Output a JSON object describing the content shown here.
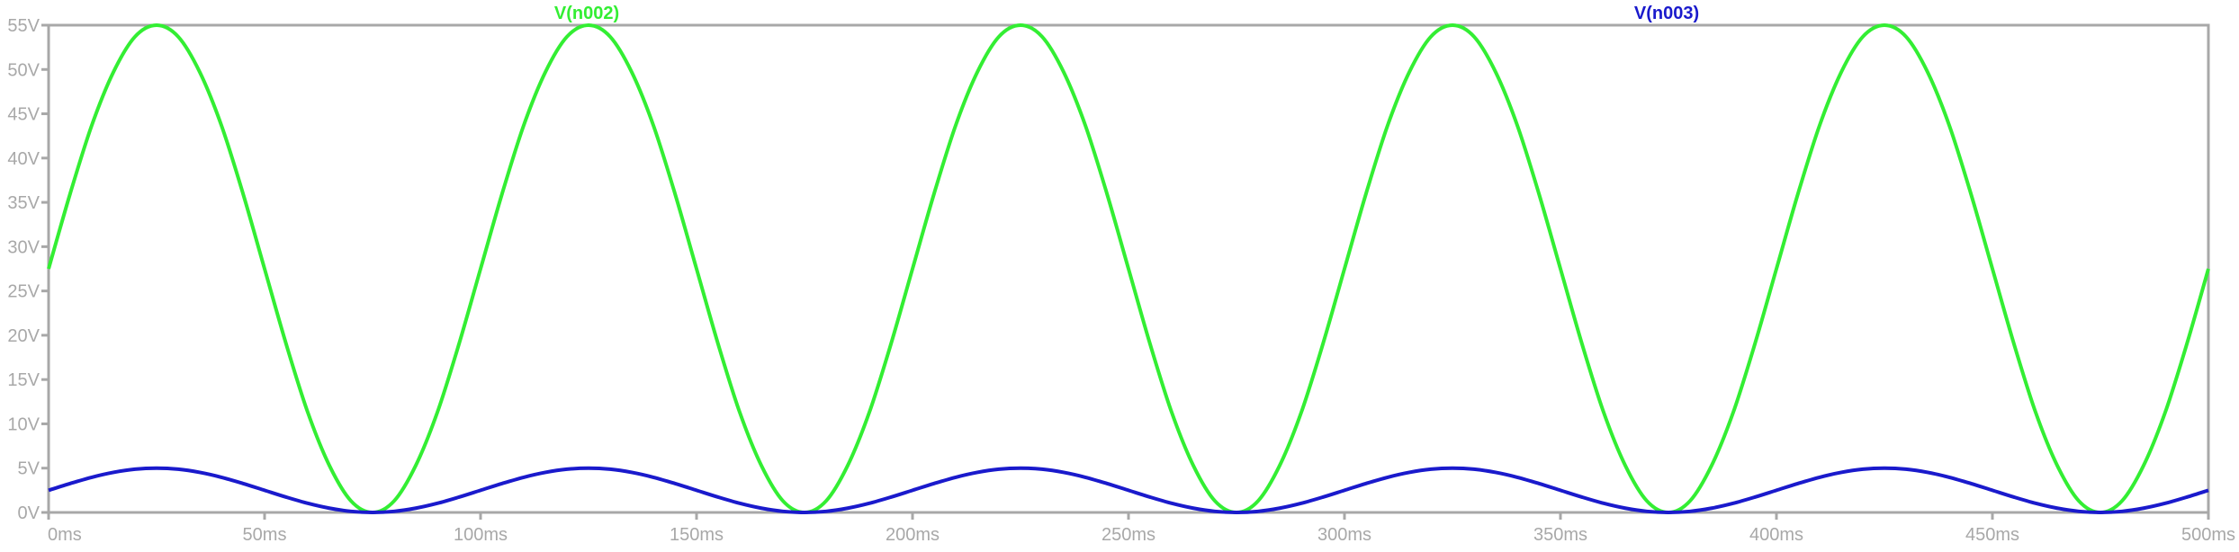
{
  "chart_data": {
    "type": "line",
    "xlim": [
      0,
      500
    ],
    "ylim": [
      0,
      55
    ],
    "x_ticks": [
      0,
      50,
      100,
      150,
      200,
      250,
      300,
      350,
      400,
      450,
      500
    ],
    "x_tick_labels": [
      "0ms",
      "50ms",
      "100ms",
      "150ms",
      "200ms",
      "250ms",
      "300ms",
      "350ms",
      "400ms",
      "450ms",
      "500ms"
    ],
    "y_ticks": [
      0,
      5,
      10,
      15,
      20,
      25,
      30,
      35,
      40,
      45,
      50,
      55
    ],
    "y_tick_labels": [
      "0V",
      "5V",
      "10V",
      "15V",
      "20V",
      "25V",
      "30V",
      "35V",
      "40V",
      "45V",
      "50V",
      "55V"
    ],
    "grid": false,
    "legend_position": "top",
    "series": [
      {
        "name": "V(n002)",
        "color": "#33ee33",
        "x": [
          0,
          5,
          10,
          15,
          20,
          25,
          30,
          35,
          40,
          45,
          50,
          55,
          60,
          65,
          70,
          75,
          80,
          85,
          90,
          95,
          100,
          105,
          110,
          115,
          120,
          125,
          130,
          135,
          140,
          145,
          150,
          155,
          160,
          165,
          170,
          175,
          180,
          185,
          190,
          195,
          200,
          205,
          210,
          215,
          220,
          225,
          230,
          235,
          240,
          245,
          250,
          255,
          260,
          265,
          270,
          275,
          280,
          285,
          290,
          295,
          300,
          305,
          310,
          315,
          320,
          325,
          330,
          335,
          340,
          345,
          350,
          355,
          360,
          365,
          370,
          375,
          380,
          385,
          390,
          395,
          400,
          405,
          410,
          415,
          420,
          425,
          430,
          435,
          440,
          445,
          450,
          455,
          460,
          465,
          470,
          475,
          480,
          485,
          490,
          495,
          500
        ],
        "y": [
          27.5,
          36.0,
          43.7,
          49.7,
          53.7,
          55.0,
          53.7,
          49.7,
          43.7,
          36.0,
          27.5,
          19.0,
          11.3,
          5.3,
          1.3,
          0.0,
          1.3,
          5.3,
          11.3,
          19.0,
          27.5,
          36.0,
          43.7,
          49.7,
          53.7,
          55.0,
          53.7,
          49.7,
          43.7,
          36.0,
          27.5,
          19.0,
          11.3,
          5.3,
          1.3,
          0.0,
          1.3,
          5.3,
          11.3,
          19.0,
          27.5,
          36.0,
          43.7,
          49.7,
          53.7,
          55.0,
          53.7,
          49.7,
          43.7,
          36.0,
          27.5,
          19.0,
          11.3,
          5.3,
          1.3,
          0.0,
          1.3,
          5.3,
          11.3,
          19.0,
          27.5,
          36.0,
          43.7,
          49.7,
          53.7,
          55.0,
          53.7,
          49.7,
          43.7,
          36.0,
          27.5,
          19.0,
          11.3,
          5.3,
          1.3,
          0.0,
          1.3,
          5.3,
          11.3,
          19.0,
          27.5,
          36.0,
          43.7,
          49.7,
          53.7,
          55.0,
          53.7,
          49.7,
          43.7,
          36.0,
          27.5,
          19.0,
          11.3,
          5.3,
          1.3,
          0.0,
          1.3,
          5.3,
          11.3,
          19.0,
          27.5
        ]
      },
      {
        "name": "V(n003)",
        "color": "#1a1acc",
        "x": [
          0,
          5,
          10,
          15,
          20,
          25,
          30,
          35,
          40,
          45,
          50,
          55,
          60,
          65,
          70,
          75,
          80,
          85,
          90,
          95,
          100,
          105,
          110,
          115,
          120,
          125,
          130,
          135,
          140,
          145,
          150,
          155,
          160,
          165,
          170,
          175,
          180,
          185,
          190,
          195,
          200,
          205,
          210,
          215,
          220,
          225,
          230,
          235,
          240,
          245,
          250,
          255,
          260,
          265,
          270,
          275,
          280,
          285,
          290,
          295,
          300,
          305,
          310,
          315,
          320,
          325,
          330,
          335,
          340,
          345,
          350,
          355,
          360,
          365,
          370,
          375,
          380,
          385,
          390,
          395,
          400,
          405,
          410,
          415,
          420,
          425,
          430,
          435,
          440,
          445,
          450,
          455,
          460,
          465,
          470,
          475,
          480,
          485,
          490,
          495,
          500
        ],
        "y": [
          2.5,
          3.27,
          3.97,
          4.52,
          4.88,
          5.0,
          4.88,
          4.52,
          3.97,
          3.27,
          2.5,
          1.73,
          1.03,
          0.48,
          0.12,
          0.0,
          0.12,
          0.48,
          1.03,
          1.73,
          2.5,
          3.27,
          3.97,
          4.52,
          4.88,
          5.0,
          4.88,
          4.52,
          3.97,
          3.27,
          2.5,
          1.73,
          1.03,
          0.48,
          0.12,
          0.0,
          0.12,
          0.48,
          1.03,
          1.73,
          2.5,
          3.27,
          3.97,
          4.52,
          4.88,
          5.0,
          4.88,
          4.52,
          3.97,
          3.27,
          2.5,
          1.73,
          1.03,
          0.48,
          0.12,
          0.0,
          0.12,
          0.48,
          1.03,
          1.73,
          2.5,
          3.27,
          3.97,
          4.52,
          4.88,
          5.0,
          4.88,
          4.52,
          3.97,
          3.27,
          2.5,
          1.73,
          1.03,
          0.48,
          0.12,
          0.0,
          0.12,
          0.48,
          1.03,
          1.73,
          2.5,
          3.27,
          3.97,
          4.52,
          4.88,
          5.0,
          4.88,
          4.52,
          3.97,
          3.27,
          2.5,
          1.73,
          1.03,
          0.48,
          0.12,
          0.0,
          0.12,
          0.48,
          1.03,
          1.73,
          2.5
        ]
      }
    ]
  },
  "colors": {
    "frame": "#a8a8a8",
    "tick_text": "#a8a8a8",
    "background": "#ffffff"
  }
}
